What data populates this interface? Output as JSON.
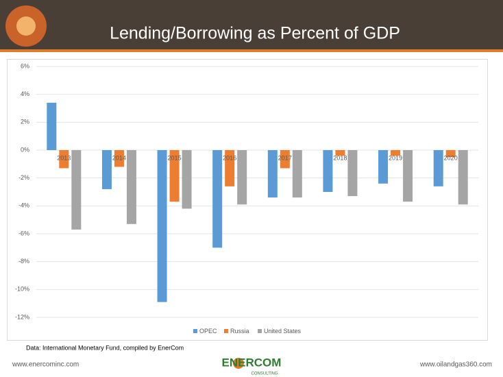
{
  "chart_data": {
    "type": "bar",
    "title": "Lending/Borrowing as Percent of GDP",
    "categories": [
      "2013",
      "2014",
      "2015",
      "2016",
      "2017",
      "2018",
      "2019",
      "2020"
    ],
    "series": [
      {
        "name": "OPEC",
        "color": "#5b9bd5",
        "values": [
          3.4,
          -2.8,
          -10.9,
          -7.0,
          -3.4,
          -3.0,
          -2.4,
          -2.6
        ]
      },
      {
        "name": "Russia",
        "color": "#ed7d31",
        "values": [
          -1.3,
          -1.2,
          -3.7,
          -2.6,
          -1.3,
          -0.4,
          -0.4,
          -0.5
        ]
      },
      {
        "name": "United States",
        "color": "#a5a5a5",
        "values": [
          -5.7,
          -5.3,
          -4.2,
          -3.9,
          -3.4,
          -3.3,
          -3.7,
          -3.9
        ]
      }
    ],
    "ylim": [
      -12,
      6
    ],
    "yticks": [
      {
        "value": -12,
        "label": "-12%"
      },
      {
        "value": -10,
        "label": "-10%"
      },
      {
        "value": -8,
        "label": "-8%"
      },
      {
        "value": -6,
        "label": "-6%"
      },
      {
        "value": -4,
        "label": "-4%"
      },
      {
        "value": -2,
        "label": "-2%"
      },
      {
        "value": 0,
        "label": "0%"
      },
      {
        "value": 2,
        "label": "2%"
      },
      {
        "value": 4,
        "label": "4%"
      },
      {
        "value": 6,
        "label": "6%"
      }
    ],
    "grid": true,
    "legend": "bottom",
    "source": "Data: International Monetary Fund, compiled by EnerCom"
  },
  "slide": {
    "footer_left": "www.enercominc.com",
    "footer_right": "www.oilandgas360.com",
    "logo": "ENERCOM",
    "logo_sub": "CONSULTING"
  }
}
